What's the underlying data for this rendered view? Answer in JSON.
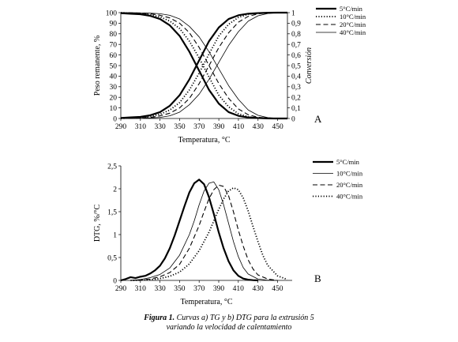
{
  "chart_data": [
    {
      "type": "line",
      "panel_label": "A",
      "xlabel": "Temperatura, °C",
      "ylabel": "Peso remanente, %",
      "ylabel_right": "Conversión",
      "xlim": [
        290,
        460
      ],
      "ylim": [
        0,
        100
      ],
      "ylim_right": [
        0,
        1
      ],
      "x_ticks": [
        "290",
        "310",
        "330",
        "350",
        "370",
        "390",
        "410",
        "430",
        "450"
      ],
      "y_ticks": [
        "0",
        "10",
        "20",
        "30",
        "40",
        "50",
        "60",
        "70",
        "80",
        "90",
        "100"
      ],
      "y_ticks_right": [
        "0",
        "0,1",
        "0,2",
        "0,3",
        "0,4",
        "0,5",
        "0,6",
        "0,7",
        "0,8",
        "0,9",
        "1"
      ],
      "legend_position": "top-right",
      "grid": false,
      "x": [
        290,
        300,
        310,
        320,
        330,
        340,
        350,
        360,
        370,
        380,
        390,
        400,
        410,
        420,
        430,
        440,
        450,
        460
      ],
      "series": [
        {
          "name": "5°C/min",
          "style": "solid-thick",
          "weight": [
            99.5,
            99,
            98.5,
            97,
            94,
            88,
            78,
            63,
            45,
            27,
            14,
            6,
            2.5,
            1,
            0.4,
            0.1,
            0,
            0
          ],
          "conversion": [
            0.005,
            0.01,
            0.015,
            0.03,
            0.06,
            0.12,
            0.22,
            0.37,
            0.55,
            0.73,
            0.86,
            0.94,
            0.975,
            0.99,
            0.996,
            0.999,
            1,
            1
          ]
        },
        {
          "name": "10°C/min",
          "style": "dotted",
          "weight": [
            100,
            99.5,
            99,
            98,
            96,
            92,
            85,
            73,
            57,
            39,
            22,
            11,
            4.5,
            1.5,
            0.5,
            0.2,
            0,
            0
          ],
          "conversion": [
            0,
            0.005,
            0.01,
            0.02,
            0.04,
            0.08,
            0.15,
            0.27,
            0.43,
            0.61,
            0.78,
            0.89,
            0.955,
            0.985,
            0.995,
            0.998,
            1,
            1
          ]
        },
        {
          "name": "20°C/min",
          "style": "dashed",
          "weight": [
            100,
            99.8,
            99.5,
            99,
            97.5,
            95,
            90,
            81,
            67,
            50,
            33,
            19,
            9,
            3.5,
            1.2,
            0.3,
            0.1,
            0
          ],
          "conversion": [
            0,
            0.002,
            0.005,
            0.01,
            0.025,
            0.05,
            0.1,
            0.19,
            0.33,
            0.5,
            0.67,
            0.81,
            0.91,
            0.965,
            0.988,
            0.997,
            0.999,
            1
          ]
        },
        {
          "name": "40°C/min",
          "style": "thin",
          "weight": [
            100,
            100,
            99.8,
            99.5,
            99,
            97.5,
            94,
            87,
            77,
            63,
            47,
            31,
            18,
            8,
            3,
            0.8,
            0.2,
            0
          ],
          "conversion": [
            0,
            0,
            0.002,
            0.005,
            0.01,
            0.025,
            0.06,
            0.13,
            0.23,
            0.37,
            0.53,
            0.69,
            0.82,
            0.92,
            0.97,
            0.992,
            0.998,
            1
          ]
        }
      ]
    },
    {
      "type": "line",
      "panel_label": "B",
      "xlabel": "Temperatura, °C",
      "ylabel": "DTG, %/°C",
      "xlim": [
        290,
        465
      ],
      "ylim": [
        0,
        2.5
      ],
      "x_ticks": [
        "290",
        "310",
        "330",
        "350",
        "370",
        "390",
        "410",
        "430",
        "450"
      ],
      "y_ticks": [
        "0",
        "0,5",
        "1",
        "1,5",
        "2",
        "2,5"
      ],
      "legend_position": "top-right",
      "grid": false,
      "series": [
        {
          "name": "5°C/min",
          "style": "solid-thick",
          "x": [
            290,
            295,
            300,
            305,
            310,
            315,
            320,
            325,
            330,
            335,
            340,
            345,
            350,
            355,
            360,
            365,
            370,
            375,
            380,
            385,
            390,
            395,
            400,
            405,
            410,
            415,
            420,
            425,
            430
          ],
          "y": [
            0,
            0.03,
            0.07,
            0.05,
            0.08,
            0.1,
            0.15,
            0.22,
            0.32,
            0.48,
            0.7,
            0.98,
            1.3,
            1.62,
            1.92,
            2.12,
            2.2,
            2.1,
            1.82,
            1.45,
            1.05,
            0.7,
            0.42,
            0.22,
            0.1,
            0.04,
            0.015,
            0.005,
            0
          ]
        },
        {
          "name": "10°C/min",
          "style": "thin",
          "x": [
            300,
            310,
            320,
            330,
            340,
            350,
            360,
            365,
            370,
            375,
            380,
            385,
            390,
            395,
            400,
            405,
            410,
            415,
            420,
            430,
            440,
            450
          ],
          "y": [
            0,
            0.02,
            0.06,
            0.13,
            0.27,
            0.55,
            1.0,
            1.3,
            1.65,
            1.95,
            2.12,
            2.15,
            1.98,
            1.65,
            1.25,
            0.85,
            0.52,
            0.28,
            0.14,
            0.03,
            0.005,
            0
          ]
        },
        {
          "name": "20°C/min",
          "style": "dashed",
          "x": [
            300,
            310,
            320,
            330,
            340,
            350,
            360,
            370,
            375,
            380,
            385,
            390,
            395,
            400,
            405,
            410,
            415,
            420,
            425,
            430,
            440,
            450
          ],
          "y": [
            0,
            0.01,
            0.03,
            0.08,
            0.17,
            0.35,
            0.7,
            1.2,
            1.5,
            1.78,
            1.98,
            2.08,
            2.05,
            1.85,
            1.5,
            1.1,
            0.75,
            0.45,
            0.25,
            0.12,
            0.03,
            0
          ]
        },
        {
          "name": "40°C/min",
          "style": "dotted",
          "x": [
            300,
            310,
            320,
            330,
            340,
            350,
            360,
            370,
            380,
            385,
            390,
            395,
            400,
            405,
            410,
            415,
            420,
            425,
            430,
            435,
            440,
            450,
            460
          ],
          "y": [
            0,
            0.005,
            0.015,
            0.04,
            0.09,
            0.18,
            0.36,
            0.65,
            1.05,
            1.3,
            1.55,
            1.78,
            1.95,
            2.02,
            1.98,
            1.8,
            1.52,
            1.18,
            0.85,
            0.55,
            0.33,
            0.1,
            0.02
          ]
        }
      ]
    }
  ],
  "caption": {
    "bold": "Figura 1.",
    "line1": " Curvas a) TG y b) DTG para la extrusión 5",
    "line2": "variando la velocidad de calentamiento"
  }
}
